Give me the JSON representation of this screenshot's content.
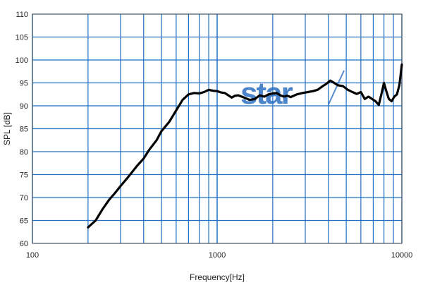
{
  "chart_data": {
    "type": "line",
    "xlabel": "Frequency[Hz]",
    "ylabel": "SPL [dB]",
    "x_scale": "log",
    "xlim": [
      100,
      10000
    ],
    "ylim": [
      60,
      110
    ],
    "x_tick_labels": [
      "100",
      "1000",
      "10000"
    ],
    "y_ticks": [
      60,
      65,
      70,
      75,
      80,
      85,
      90,
      95,
      100,
      105,
      110
    ],
    "grid": true,
    "colors": {
      "grid": "#1f6fc4",
      "line": "#000000",
      "frame": "#555555",
      "logo": "#2c6fc2"
    },
    "watermark_text": "star",
    "series": [
      {
        "x": [
          200,
          220,
          240,
          260,
          280,
          300,
          330,
          370,
          400,
          430,
          470,
          500,
          550,
          600,
          650,
          700,
          750,
          800,
          850,
          900,
          950,
          1000,
          1050,
          1100,
          1150,
          1200,
          1250,
          1300,
          1400,
          1500,
          1600,
          1700,
          1800,
          1900,
          2000,
          2100,
          2200,
          2300,
          2400,
          2500,
          2700,
          2900,
          3100,
          3300,
          3500,
          3700,
          3900,
          4100,
          4300,
          4500,
          4800,
          5100,
          5400,
          5700,
          6000,
          6300,
          6600,
          6900,
          7200,
          7500,
          7800,
          8000,
          8200,
          8500,
          8800,
          9100,
          9400,
          9700,
          10000
        ],
        "y": [
          63.5,
          65,
          67.5,
          69.5,
          71,
          72.5,
          74.5,
          77,
          78.5,
          80.5,
          82.5,
          84.5,
          86.5,
          89,
          91.3,
          92.5,
          92.8,
          92.7,
          93,
          93.5,
          93.3,
          93.2,
          92.9,
          92.8,
          92.3,
          91.8,
          92.2,
          92.3,
          91.8,
          91.3,
          91.5,
          92.3,
          92,
          92.5,
          92.7,
          92.8,
          92.3,
          92,
          92.2,
          91.9,
          92.5,
          92.8,
          93,
          93.2,
          93.5,
          94.2,
          94.8,
          95.5,
          95,
          94.5,
          94.3,
          93.5,
          93,
          92.6,
          93,
          91.5,
          92,
          91.5,
          91,
          90.2,
          93,
          95,
          93.5,
          91.5,
          91,
          92,
          92.5,
          94.5,
          99
        ]
      }
    ]
  }
}
